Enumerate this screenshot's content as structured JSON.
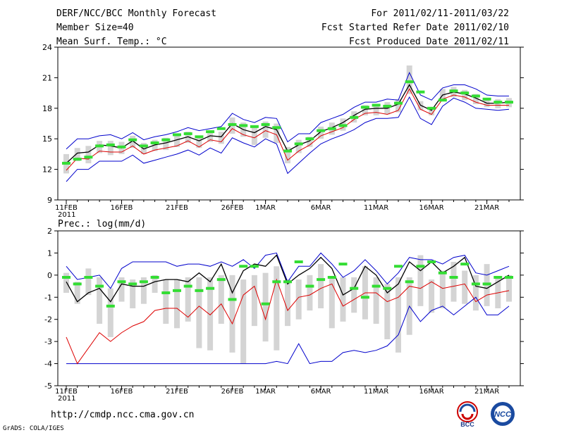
{
  "header": {
    "title": "DERF/NCC/BCC Monthly Forecast",
    "member_size": "Member Size=40",
    "variable": "Mean Surf. Temp.: °C",
    "forecast_period": "For 2011/02/11-2011/03/22",
    "started_refer_date": "Fcst Started Refer Date 2011/02/10",
    "produced_date": "Fcst Produced Date 2011/02/11"
  },
  "footer": {
    "url": "http://cmdp.ncc.cma.gov.cn",
    "grads": "GrADS: COLA/IGES",
    "logo_bcc": "BCC",
    "logo_ncc": "NCC"
  },
  "colors": {
    "envelope": "#0000cc",
    "lower": "#dd0000",
    "mean": "#000000",
    "bar": "#d4d4d4",
    "marker": "#33dd33"
  },
  "chart_data": [
    {
      "type": "line",
      "title": "Mean Surf. Temp.: °C",
      "ylim": [
        9,
        24
      ],
      "yticks": [
        9,
        12,
        15,
        18,
        21,
        24
      ],
      "xticks": [
        {
          "day": 1,
          "label": "11FEB",
          "sublabel": "2011"
        },
        {
          "day": 6,
          "label": "16FEB"
        },
        {
          "day": 11,
          "label": "21FEB"
        },
        {
          "day": 16,
          "label": "26FEB"
        },
        {
          "day": 19,
          "label": "1MAR"
        },
        {
          "day": 24,
          "label": "6MAR"
        },
        {
          "day": 29,
          "label": "11MAR"
        },
        {
          "day": 34,
          "label": "16MAR"
        },
        {
          "day": 39,
          "label": "21MAR"
        }
      ],
      "x": [
        1,
        2,
        3,
        4,
        5,
        6,
        7,
        8,
        9,
        10,
        11,
        12,
        13,
        14,
        15,
        16,
        17,
        18,
        19,
        20,
        21,
        22,
        23,
        24,
        25,
        26,
        27,
        28,
        29,
        30,
        31,
        32,
        33,
        34,
        35,
        36,
        37,
        38,
        39,
        40,
        41
      ],
      "series": [
        {
          "name": "max",
          "values": [
            10.8,
            12.0,
            12.0,
            12.8,
            12.8,
            12.8,
            13.4,
            12.6,
            12.9,
            13.2,
            13.5,
            13.9,
            13.4,
            14.1,
            13.6,
            15.1,
            14.6,
            14.2,
            15.0,
            14.5,
            11.6,
            12.6,
            13.6,
            14.5,
            15.0,
            15.4,
            15.9,
            16.6,
            17.0,
            17.0,
            17.1,
            19.1,
            17.0,
            16.4,
            18.2,
            19.0,
            18.6,
            18.0,
            17.9,
            17.8,
            17.9
          ]
        },
        {
          "name": "upper",
          "values": [
            14.0,
            15.0,
            15.0,
            15.3,
            15.4,
            15.0,
            15.6,
            14.9,
            15.2,
            15.4,
            15.7,
            16.1,
            15.8,
            16.0,
            16.2,
            17.5,
            16.9,
            16.6,
            17.1,
            17.0,
            14.7,
            15.5,
            15.5,
            16.6,
            17.0,
            17.4,
            18.1,
            18.6,
            18.6,
            18.9,
            18.8,
            21.5,
            19.3,
            18.8,
            20.0,
            20.3,
            20.3,
            19.9,
            19.3,
            19.2,
            19.2
          ]
        },
        {
          "name": "mean",
          "values": [
            12.6,
            13.6,
            13.7,
            14.4,
            14.3,
            14.1,
            14.8,
            14.0,
            14.4,
            14.6,
            14.9,
            15.2,
            14.8,
            15.3,
            15.2,
            16.5,
            15.9,
            15.6,
            16.2,
            15.9,
            13.8,
            14.4,
            14.8,
            15.7,
            16.1,
            16.6,
            17.3,
            17.9,
            18.0,
            18.0,
            18.4,
            20.3,
            18.3,
            17.8,
            19.3,
            19.6,
            19.4,
            19.0,
            18.5,
            18.5,
            18.6
          ]
        },
        {
          "name": "lower",
          "values": [
            11.9,
            13.1,
            13.0,
            13.8,
            13.7,
            13.7,
            14.3,
            13.5,
            13.9,
            14.1,
            14.3,
            14.8,
            14.2,
            14.9,
            14.7,
            16.0,
            15.4,
            15.1,
            15.8,
            15.4,
            12.9,
            13.8,
            14.4,
            15.3,
            15.7,
            16.1,
            16.9,
            17.5,
            17.6,
            17.4,
            17.8,
            19.9,
            17.9,
            17.4,
            18.9,
            19.3,
            19.1,
            18.6,
            18.3,
            18.3,
            18.3
          ]
        }
      ],
      "bars": [
        {
          "low": 11.6,
          "high": 13.5
        },
        {
          "low": 12.8,
          "high": 14.1
        },
        {
          "low": 12.6,
          "high": 14.3
        },
        {
          "low": 13.6,
          "high": 14.8
        },
        {
          "low": 13.4,
          "high": 14.8
        },
        {
          "low": 13.5,
          "high": 14.7
        },
        {
          "low": 14.1,
          "high": 15.3
        },
        {
          "low": 13.5,
          "high": 14.6
        },
        {
          "low": 13.8,
          "high": 14.9
        },
        {
          "low": 13.9,
          "high": 15.1
        },
        {
          "low": 14.2,
          "high": 15.4
        },
        {
          "low": 14.6,
          "high": 15.7
        },
        {
          "low": 14.1,
          "high": 15.3
        },
        {
          "low": 14.7,
          "high": 15.7
        },
        {
          "low": 14.5,
          "high": 15.7
        },
        {
          "low": 15.5,
          "high": 17.1
        },
        {
          "low": 15.2,
          "high": 16.6
        },
        {
          "low": 14.4,
          "high": 16.3
        },
        {
          "low": 15.1,
          "high": 16.7
        },
        {
          "low": 14.6,
          "high": 16.5
        },
        {
          "low": 12.6,
          "high": 14.2
        },
        {
          "low": 13.6,
          "high": 14.9
        },
        {
          "low": 14.2,
          "high": 15.2
        },
        {
          "low": 15.0,
          "high": 16.2
        },
        {
          "low": 15.4,
          "high": 16.6
        },
        {
          "low": 15.8,
          "high": 17.0
        },
        {
          "low": 16.6,
          "high": 17.7
        },
        {
          "low": 17.3,
          "high": 18.3
        },
        {
          "low": 17.3,
          "high": 18.4
        },
        {
          "low": 17.4,
          "high": 18.6
        },
        {
          "low": 17.6,
          "high": 18.9
        },
        {
          "low": 19.4,
          "high": 22.2
        },
        {
          "low": 17.8,
          "high": 18.7
        },
        {
          "low": 17.3,
          "high": 18.1
        },
        {
          "low": 18.8,
          "high": 19.9
        },
        {
          "low": 19.1,
          "high": 20.1
        },
        {
          "low": 18.8,
          "high": 19.8
        },
        {
          "low": 18.4,
          "high": 19.4
        },
        {
          "low": 18.1,
          "high": 19.0
        },
        {
          "low": 18.0,
          "high": 18.9
        },
        {
          "low": 18.1,
          "high": 19.0
        }
      ],
      "markers": [
        12.6,
        13.0,
        13.2,
        14.3,
        14.4,
        14.2,
        14.9,
        14.3,
        14.6,
        14.9,
        15.4,
        15.5,
        15.2,
        15.7,
        16.0,
        16.4,
        16.3,
        16.2,
        16.4,
        16.1,
        13.8,
        14.5,
        15.0,
        15.8,
        16.0,
        16.3,
        17.1,
        18.1,
        18.3,
        18.2,
        18.5,
        20.6,
        19.6,
        18.0,
        18.8,
        19.7,
        19.5,
        19.2,
        18.9,
        18.6,
        18.6
      ]
    },
    {
      "type": "line",
      "title": "Prec.: log(mm/d)",
      "ylim": [
        -5,
        2
      ],
      "yticks": [
        -5,
        -4,
        -3,
        -2,
        -1,
        0,
        1,
        2
      ],
      "xticks": [
        {
          "day": 1,
          "label": "11FEB",
          "sublabel": "2011"
        },
        {
          "day": 6,
          "label": "16FEB"
        },
        {
          "day": 11,
          "label": "21FEB"
        },
        {
          "day": 16,
          "label": "26FEB"
        },
        {
          "day": 19,
          "label": "1MAR"
        },
        {
          "day": 24,
          "label": "6MAR"
        },
        {
          "day": 29,
          "label": "11MAR"
        },
        {
          "day": 34,
          "label": "16MAR"
        },
        {
          "day": 39,
          "label": "21MAR"
        }
      ],
      "x": [
        1,
        2,
        3,
        4,
        5,
        6,
        7,
        8,
        9,
        10,
        11,
        12,
        13,
        14,
        15,
        16,
        17,
        18,
        19,
        20,
        21,
        22,
        23,
        24,
        25,
        26,
        27,
        28,
        29,
        30,
        31,
        32,
        33,
        34,
        35,
        36,
        37,
        38,
        39,
        40,
        41
      ],
      "series": [
        {
          "name": "max",
          "values": [
            -4.0,
            -4.0,
            -4.0,
            -4.0,
            -4.0,
            -4.0,
            -4.0,
            -4.0,
            -4.0,
            -4.0,
            -4.0,
            -4.0,
            -4.0,
            -4.0,
            -4.0,
            -4.0,
            -4.0,
            -4.0,
            -4.0,
            -3.9,
            -4.0,
            -3.1,
            -4.0,
            -3.9,
            -3.9,
            -3.5,
            -3.4,
            -3.5,
            -3.4,
            -3.2,
            -2.7,
            -1.4,
            -2.1,
            -1.6,
            -1.4,
            -1.8,
            -1.4,
            -1.0,
            -1.8,
            -1.8,
            -1.4
          ]
        },
        {
          "name": "upper",
          "values": [
            0.4,
            -0.2,
            -0.1,
            0.0,
            -0.6,
            0.3,
            0.6,
            0.6,
            0.6,
            0.6,
            0.4,
            0.5,
            0.5,
            0.4,
            0.6,
            0.4,
            0.7,
            0.3,
            0.9,
            1.0,
            -0.3,
            0.4,
            0.4,
            1.0,
            0.5,
            -0.1,
            0.2,
            0.7,
            0.2,
            -0.4,
            0.1,
            0.8,
            0.7,
            0.7,
            0.5,
            0.8,
            0.9,
            0.1,
            0.0,
            0.2,
            0.4
          ]
        },
        {
          "name": "mean",
          "values": [
            -0.3,
            -1.2,
            -0.8,
            -0.6,
            -1.2,
            -0.4,
            -0.5,
            -0.5,
            -0.3,
            -0.2,
            -0.2,
            -0.3,
            0.1,
            -0.3,
            0.5,
            -0.8,
            0.2,
            0.5,
            0.4,
            0.9,
            -0.4,
            0.0,
            0.3,
            0.8,
            0.3,
            -0.9,
            -0.6,
            0.4,
            0.0,
            -0.8,
            -0.4,
            0.6,
            0.2,
            0.6,
            0.1,
            0.4,
            0.8,
            -0.5,
            -0.6,
            -0.3,
            0.0
          ]
        },
        {
          "name": "lower",
          "values": [
            -2.8,
            -4.0,
            -3.3,
            -2.6,
            -3.0,
            -2.6,
            -2.3,
            -2.1,
            -1.6,
            -1.5,
            -1.5,
            -1.9,
            -1.4,
            -1.8,
            -1.3,
            -2.2,
            -0.9,
            -0.5,
            -2.0,
            -0.2,
            -1.6,
            -1.0,
            -0.9,
            -0.6,
            -0.4,
            -1.4,
            -1.1,
            -0.8,
            -0.8,
            -1.2,
            -1.0,
            -0.5,
            -0.6,
            -0.3,
            -0.6,
            -0.5,
            -0.4,
            -1.2,
            -0.9,
            -0.8,
            -0.7
          ]
        }
      ],
      "bars": [
        {
          "low": -0.8,
          "high": 0.1
        },
        {
          "low": -1.3,
          "high": -0.3
        },
        {
          "low": -0.9,
          "high": 0.3
        },
        {
          "low": -2.2,
          "high": -0.1
        },
        {
          "low": -2.8,
          "high": -0.6
        },
        {
          "low": -1.2,
          "high": -0.1
        },
        {
          "low": -1.5,
          "high": -0.2
        },
        {
          "low": -1.3,
          "high": -0.1
        },
        {
          "low": -0.8,
          "high": 0.0
        },
        {
          "low": -2.2,
          "high": -0.2
        },
        {
          "low": -2.4,
          "high": -0.2
        },
        {
          "low": -2.1,
          "high": -0.1
        },
        {
          "low": -3.3,
          "high": -0.1
        },
        {
          "low": -3.4,
          "high": -0.1
        },
        {
          "low": -2.2,
          "high": 0.0
        },
        {
          "low": -3.5,
          "high": 0.0
        },
        {
          "low": -4.0,
          "high": -0.2
        },
        {
          "low": -2.3,
          "high": 0.0
        },
        {
          "low": -3.0,
          "high": 0.1
        },
        {
          "low": -3.4,
          "high": 0.4
        },
        {
          "low": -2.3,
          "high": -0.2
        },
        {
          "low": -2.0,
          "high": -0.2
        },
        {
          "low": -1.6,
          "high": 0.0
        },
        {
          "low": -1.5,
          "high": 0.5
        },
        {
          "low": -2.4,
          "high": -0.1
        },
        {
          "low": -2.1,
          "high": -0.1
        },
        {
          "low": -1.7,
          "high": -0.1
        },
        {
          "low": -2.0,
          "high": 0.4
        },
        {
          "low": -2.2,
          "high": -0.1
        },
        {
          "low": -2.9,
          "high": -0.4
        },
        {
          "low": -3.5,
          "high": -0.1
        },
        {
          "low": -2.7,
          "high": -0.1
        },
        {
          "low": -1.4,
          "high": 0.9
        },
        {
          "low": -1.7,
          "high": -0.2
        },
        {
          "low": -1.5,
          "high": 0.2
        },
        {
          "low": -1.2,
          "high": 0.6
        },
        {
          "low": -1.3,
          "high": 0.2
        },
        {
          "low": -1.6,
          "high": 0.0
        },
        {
          "low": -1.4,
          "high": 0.5
        },
        {
          "low": -1.5,
          "high": -0.1
        },
        {
          "low": -1.2,
          "high": 0.0
        }
      ],
      "markers": [
        -0.1,
        -0.4,
        -0.1,
        -0.5,
        -1.4,
        -0.3,
        -0.4,
        -0.3,
        -0.1,
        -0.8,
        -0.7,
        -0.5,
        -0.7,
        -0.6,
        -0.2,
        -1.1,
        0.4,
        0.4,
        -1.3,
        -0.3,
        -0.3,
        0.6,
        -0.5,
        -0.2,
        -0.1,
        0.5,
        -0.6,
        -1.0,
        -0.5,
        -0.6,
        0.4,
        -0.3,
        0.4,
        0.6,
        0.1,
        -0.1,
        0.5,
        -0.4,
        -0.4,
        -0.1,
        -0.1
      ]
    }
  ]
}
